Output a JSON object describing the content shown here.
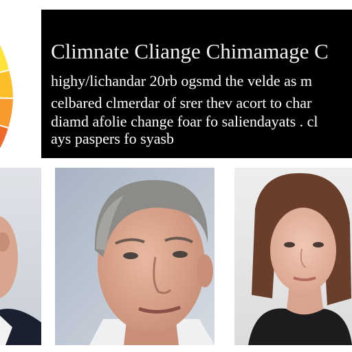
{
  "headline": {
    "title": "Climnate Cliange Chimamage C",
    "lines": [
      "highy/lichandar  20rb ogsmd the velde as m",
      "celbared clmerdar of srer thev acort to char",
      "diamd afolie change foar fo saliendayats  . cl",
      "ays paspers fo syasb"
    ]
  },
  "colors": {
    "panel_background": "#000000",
    "panel_text": "#ffffff",
    "pie_slices": [
      "#ffe23a",
      "#fcbf2a",
      "#f89a2c",
      "#f26a2a",
      "#ee4028"
    ]
  },
  "graphics": {
    "pie": "pie-chart-graphic",
    "photos": [
      "portrait-photo-left",
      "portrait-photo-center",
      "portrait-photo-right"
    ]
  }
}
